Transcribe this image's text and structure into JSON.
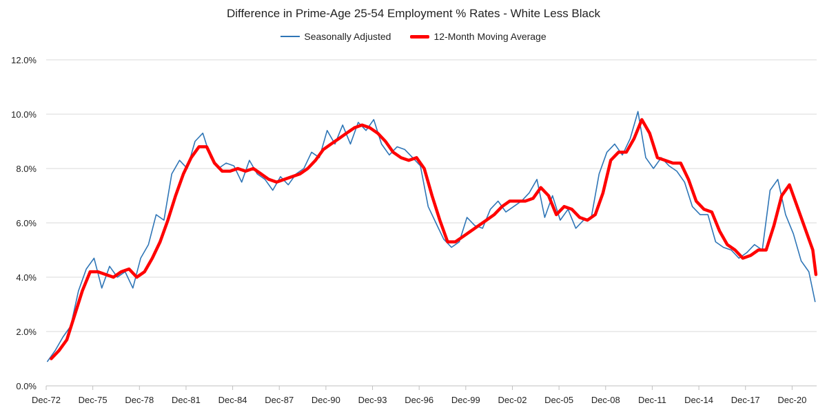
{
  "chart_data": {
    "type": "line",
    "title": "Difference in Prime-Age 25-54 Employment % Rates - White Less Black",
    "xlabel": "",
    "ylabel": "",
    "x_unit": "months (decimal year)",
    "x_range": [
      1972.92,
      2022.5
    ],
    "ylim": [
      0.0,
      12.0
    ],
    "y_ticks": [
      0.0,
      2.0,
      4.0,
      6.0,
      8.0,
      10.0,
      12.0
    ],
    "y_tick_labels": [
      "0.0%",
      "2.0%",
      "4.0%",
      "6.0%",
      "8.0%",
      "10.0%",
      "12.0%"
    ],
    "x_ticks": [
      1972.92,
      1975.92,
      1978.92,
      1981.92,
      1984.92,
      1987.92,
      1990.92,
      1993.92,
      1996.92,
      1999.92,
      2002.92,
      2005.92,
      2008.92,
      2011.92,
      2014.92,
      2017.92,
      2020.92
    ],
    "x_tick_labels": [
      "Dec-72",
      "Dec-75",
      "Dec-78",
      "Dec-81",
      "Dec-84",
      "Dec-87",
      "Dec-90",
      "Dec-93",
      "Dec-96",
      "Dec-99",
      "Dec-02",
      "Dec-05",
      "Dec-08",
      "Dec-11",
      "Dec-14",
      "Dec-17",
      "Dec-20"
    ],
    "grid": "horizontal",
    "legend_position": "top-center",
    "series": [
      {
        "name": "Seasonally Adjusted",
        "color": "#2e75b6",
        "style": "thin-line",
        "x": [
          1973.0,
          1973.5,
          1974.0,
          1974.5,
          1975.0,
          1975.5,
          1976.0,
          1976.5,
          1977.0,
          1977.5,
          1978.0,
          1978.5,
          1979.0,
          1979.5,
          1980.0,
          1980.5,
          1981.0,
          1981.5,
          1982.0,
          1982.5,
          1983.0,
          1983.5,
          1984.0,
          1984.5,
          1985.0,
          1985.5,
          1986.0,
          1986.5,
          1987.0,
          1987.5,
          1988.0,
          1988.5,
          1989.0,
          1989.5,
          1990.0,
          1990.5,
          1991.0,
          1991.5,
          1992.0,
          1992.5,
          1993.0,
          1993.5,
          1994.0,
          1994.5,
          1995.0,
          1995.5,
          1996.0,
          1996.5,
          1997.0,
          1997.5,
          1998.0,
          1998.5,
          1999.0,
          1999.5,
          2000.0,
          2000.5,
          2001.0,
          2001.5,
          2002.0,
          2002.5,
          2003.0,
          2003.5,
          2004.0,
          2004.5,
          2005.0,
          2005.5,
          2006.0,
          2006.5,
          2007.0,
          2007.5,
          2008.0,
          2008.5,
          2009.0,
          2009.5,
          2010.0,
          2010.5,
          2011.0,
          2011.5,
          2012.0,
          2012.5,
          2013.0,
          2013.5,
          2014.0,
          2014.5,
          2015.0,
          2015.5,
          2016.0,
          2016.5,
          2017.0,
          2017.5,
          2018.0,
          2018.5,
          2019.0,
          2019.5,
          2020.0,
          2020.5,
          2021.0,
          2021.5,
          2022.0,
          2022.4
        ],
        "values": [
          0.9,
          1.3,
          1.8,
          2.2,
          3.5,
          4.3,
          4.7,
          3.6,
          4.4,
          4.0,
          4.2,
          3.6,
          4.7,
          5.2,
          6.3,
          6.1,
          7.8,
          8.3,
          8.0,
          9.0,
          9.3,
          8.4,
          8.0,
          8.2,
          8.1,
          7.5,
          8.3,
          7.8,
          7.6,
          7.2,
          7.7,
          7.4,
          7.8,
          8.0,
          8.6,
          8.4,
          9.4,
          8.9,
          9.6,
          8.9,
          9.7,
          9.4,
          9.8,
          8.9,
          8.5,
          8.8,
          8.7,
          8.4,
          8.1,
          6.6,
          6.0,
          5.4,
          5.1,
          5.3,
          6.2,
          5.9,
          5.8,
          6.5,
          6.8,
          6.4,
          6.6,
          6.8,
          7.1,
          7.6,
          6.2,
          7.0,
          6.1,
          6.5,
          5.8,
          6.1,
          6.2,
          7.8,
          8.6,
          8.9,
          8.5,
          9.1,
          10.1,
          8.4,
          8.0,
          8.4,
          8.1,
          7.9,
          7.5,
          6.6,
          6.3,
          6.3,
          5.3,
          5.1,
          5.0,
          4.7,
          4.9,
          5.2,
          5.0,
          7.2,
          7.6,
          6.3,
          5.6,
          4.6,
          4.2,
          3.1
        ],
        "approximate": true
      },
      {
        "name": "12-Month Moving Average",
        "color": "#ff0000",
        "style": "thick-line",
        "x": [
          1973.25,
          1973.75,
          1974.25,
          1974.75,
          1975.25,
          1975.75,
          1976.25,
          1976.75,
          1977.25,
          1977.75,
          1978.25,
          1978.75,
          1979.25,
          1979.75,
          1980.25,
          1980.75,
          1981.25,
          1981.75,
          1982.25,
          1982.75,
          1983.25,
          1983.75,
          1984.25,
          1984.75,
          1985.25,
          1985.75,
          1986.25,
          1986.75,
          1987.25,
          1987.75,
          1988.25,
          1988.75,
          1989.25,
          1989.75,
          1990.25,
          1990.75,
          1991.25,
          1991.75,
          1992.25,
          1992.75,
          1993.25,
          1993.75,
          1994.25,
          1994.75,
          1995.25,
          1995.75,
          1996.25,
          1996.75,
          1997.25,
          1997.75,
          1998.25,
          1998.75,
          1999.25,
          1999.75,
          2000.25,
          2000.75,
          2001.25,
          2001.75,
          2002.25,
          2002.75,
          2003.25,
          2003.75,
          2004.25,
          2004.75,
          2005.25,
          2005.75,
          2006.25,
          2006.75,
          2007.25,
          2007.75,
          2008.25,
          2008.75,
          2009.25,
          2009.75,
          2010.25,
          2010.75,
          2011.25,
          2011.75,
          2012.25,
          2012.75,
          2013.25,
          2013.75,
          2014.25,
          2014.75,
          2015.25,
          2015.75,
          2016.25,
          2016.75,
          2017.25,
          2017.75,
          2018.25,
          2018.75,
          2019.25,
          2019.75,
          2020.25,
          2020.75,
          2021.25,
          2021.75,
          2022.25,
          2022.45
        ],
        "values": [
          1.0,
          1.3,
          1.7,
          2.6,
          3.5,
          4.2,
          4.2,
          4.1,
          4.0,
          4.2,
          4.3,
          4.0,
          4.2,
          4.7,
          5.3,
          6.1,
          7.0,
          7.8,
          8.4,
          8.8,
          8.8,
          8.2,
          7.9,
          7.9,
          8.0,
          7.9,
          8.0,
          7.8,
          7.6,
          7.5,
          7.6,
          7.7,
          7.8,
          8.0,
          8.3,
          8.7,
          8.9,
          9.1,
          9.3,
          9.5,
          9.6,
          9.5,
          9.3,
          9.0,
          8.6,
          8.4,
          8.3,
          8.4,
          8.0,
          7.0,
          6.1,
          5.3,
          5.3,
          5.5,
          5.7,
          5.9,
          6.1,
          6.3,
          6.6,
          6.8,
          6.8,
          6.8,
          6.9,
          7.3,
          7.0,
          6.3,
          6.6,
          6.5,
          6.2,
          6.1,
          6.3,
          7.1,
          8.3,
          8.6,
          8.6,
          9.1,
          9.8,
          9.3,
          8.4,
          8.3,
          8.2,
          8.2,
          7.6,
          6.8,
          6.5,
          6.4,
          5.7,
          5.2,
          5.0,
          4.7,
          4.8,
          5.0,
          5.0,
          5.9,
          7.0,
          7.4,
          6.6,
          5.8,
          5.0,
          4.1
        ],
        "approximate": true
      }
    ]
  }
}
